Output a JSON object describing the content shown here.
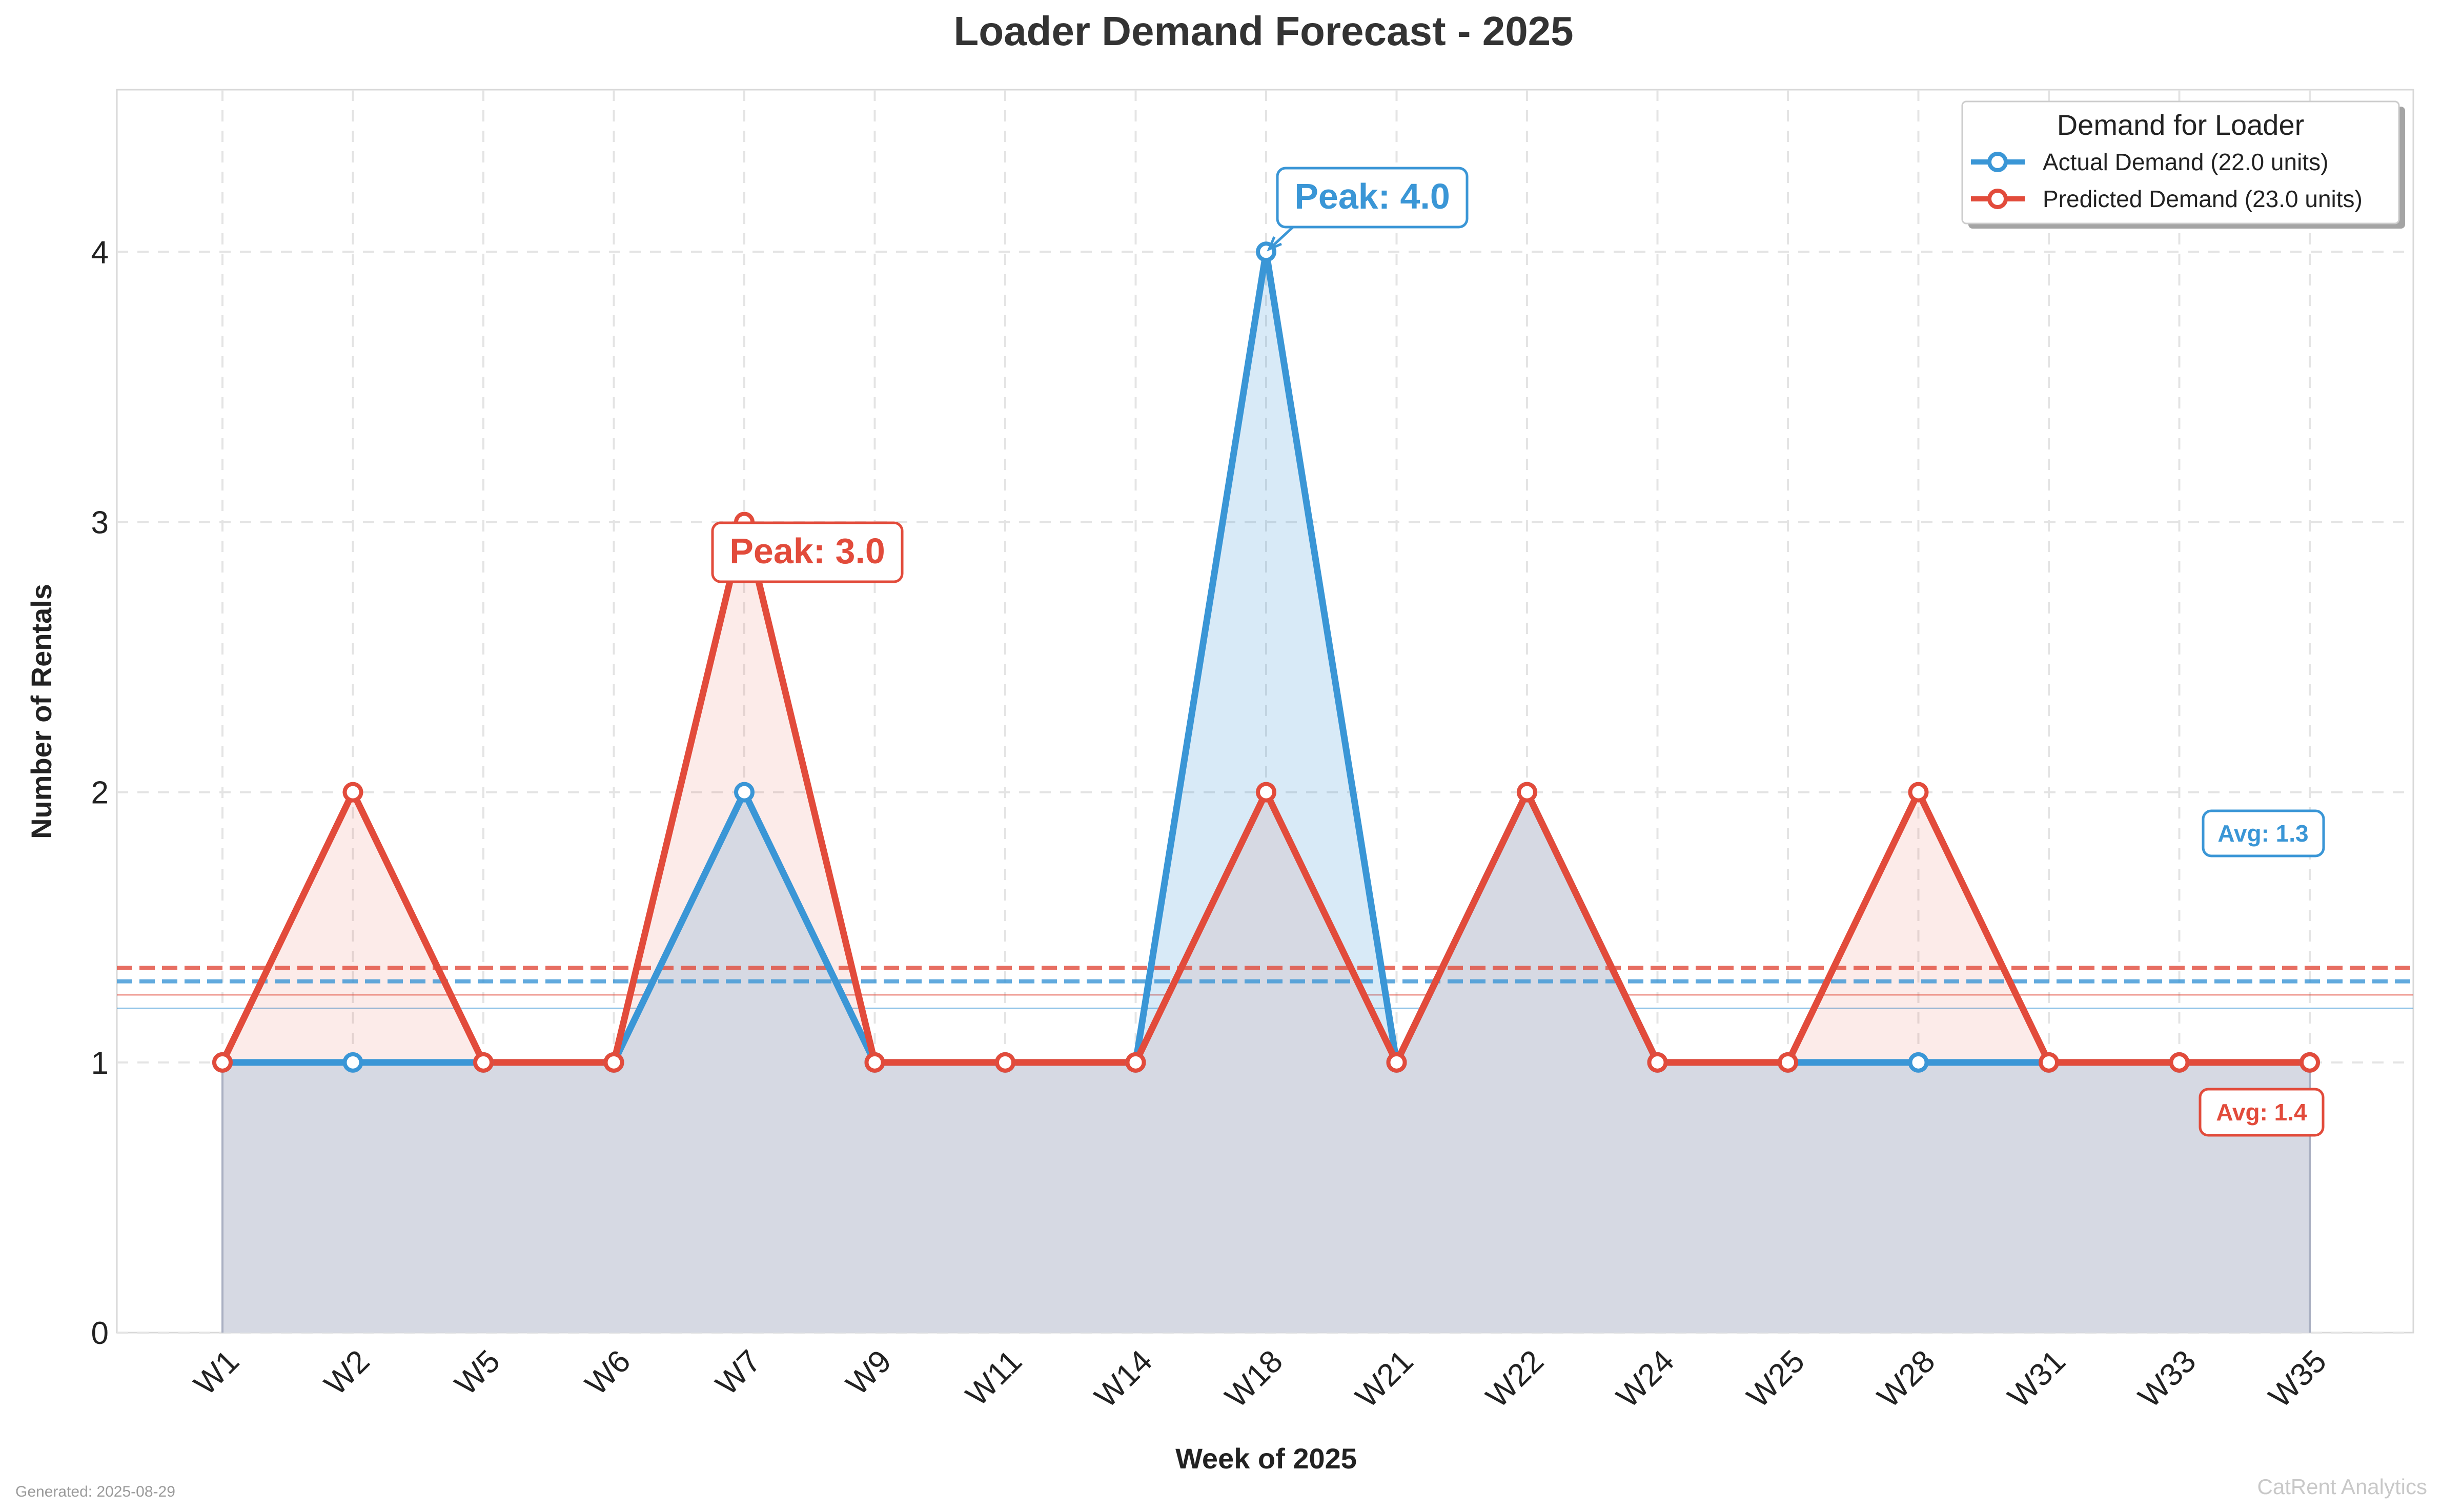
{
  "colors": {
    "actual": "#3a96d6",
    "predicted": "#e24b3b",
    "grid": "#e4e4e4",
    "overlap": "#d6d9e3"
  },
  "chart_data": {
    "type": "area",
    "title": "Loader Demand Forecast - 2025",
    "xlabel": "Week of 2025",
    "ylabel": "Number of Rentals",
    "categories": [
      "W1",
      "W2",
      "W5",
      "W6",
      "W7",
      "W9",
      "W11",
      "W14",
      "W18",
      "W21",
      "W22",
      "W24",
      "W25",
      "W28",
      "W31",
      "W33",
      "W35"
    ],
    "series": [
      {
        "name": "Actual Demand (22.0 units)",
        "values": [
          1,
          1,
          1,
          1,
          2,
          1,
          1,
          1,
          4,
          1,
          2,
          1,
          1,
          1,
          1,
          1,
          1
        ],
        "average": 1.3
      },
      {
        "name": "Predicted Demand (23.0 units)",
        "values": [
          1,
          2,
          1,
          1,
          3,
          1,
          1,
          1,
          2,
          1,
          2,
          1,
          1,
          2,
          1,
          1,
          1
        ],
        "average": 1.35
      }
    ],
    "ylim": [
      0,
      4.6
    ],
    "yticks": [
      "0",
      "1",
      "2",
      "3",
      "4"
    ],
    "grid": true,
    "legend": {
      "title": "Demand for Loader",
      "placement": "top-right"
    },
    "annotations": {
      "actual_peak": "Peak: 4.0",
      "predicted_peak": "Peak: 3.0",
      "actual_avg": "Avg: 1.3",
      "predicted_avg": "Avg: 1.4"
    },
    "reference_lines": [
      1.25,
      1.2
    ]
  },
  "footer": {
    "generated": "Generated: 2025-08-29",
    "brand": "CatRent Analytics"
  }
}
